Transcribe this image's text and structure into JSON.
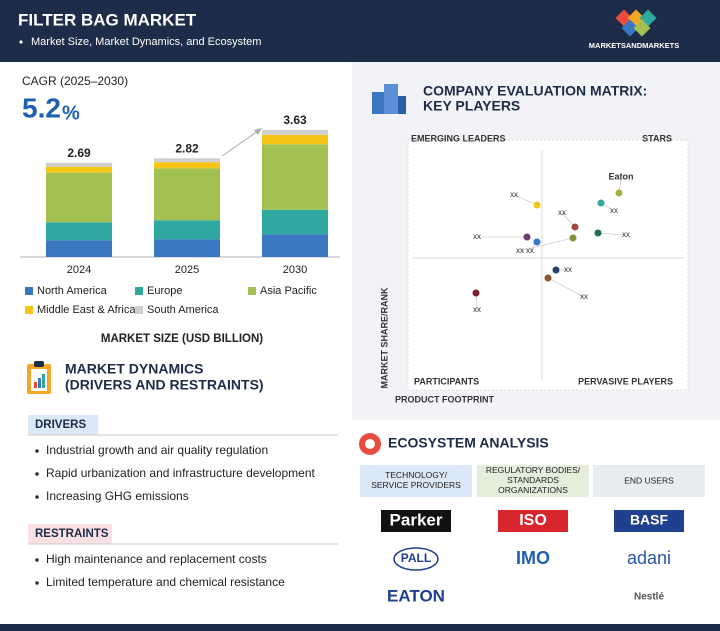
{
  "header": {
    "title": "FILTER BAG MARKET",
    "subtitle": "Market Size, Market Dynamics, and Ecosystem",
    "logo": "MARKETSANDMARKETS"
  },
  "cagr": {
    "label": "CAGR (2025–2030)",
    "value": "5.2",
    "unit": "%"
  },
  "chart_data": {
    "type": "bar",
    "stacked": true,
    "categories": [
      "2024",
      "2025",
      "2030"
    ],
    "series": [
      {
        "name": "North America",
        "color": "#3a78c2",
        "values": [
          0.48,
          0.51,
          0.65
        ]
      },
      {
        "name": "Europe",
        "color": "#2fa9a0",
        "values": [
          0.51,
          0.54,
          0.7
        ]
      },
      {
        "name": "Asia Pacific",
        "color": "#a3c152",
        "values": [
          1.42,
          1.48,
          1.87
        ]
      },
      {
        "name": "Middle East & Africa",
        "color": "#f5c518",
        "values": [
          0.17,
          0.18,
          0.27
        ]
      },
      {
        "name": "South America",
        "color": "#cfcfcf",
        "values": [
          0.11,
          0.11,
          0.14
        ]
      }
    ],
    "totals": [
      2.69,
      2.82,
      3.63
    ],
    "ylim": [
      0,
      4
    ],
    "x_label": "MARKET SIZE (USD BILLION)"
  },
  "dynamics": {
    "title": "MARKET DYNAMICS",
    "subtitle": "(DRIVERS AND RESTRAINTS)",
    "drivers": {
      "heading": "DRIVERS",
      "items": [
        "Industrial growth and air quality regulation",
        "Rapid urbanization and infrastructure development",
        "Increasing GHG emissions"
      ]
    },
    "restraints": {
      "heading": "RESTRAINTS",
      "items": [
        "High maintenance and replacement costs",
        "Limited temperature and chemical resistance"
      ]
    }
  },
  "matrix": {
    "title": "COMPANY EVALUATION MATRIX:",
    "subtitle": "KEY PLAYERS",
    "quadrants": [
      "EMERGING LEADERS",
      "STARS",
      "PARTICIPANTS",
      "PERVASIVE PLAYERS"
    ],
    "y_label": "MARKET SHARE/RANK",
    "x_label": "PRODUCT FOOTPRINT",
    "points": [
      "Eaton",
      "xx",
      "xx",
      "xx",
      "xx",
      "xx",
      "xx",
      "xx",
      "xx",
      "xx",
      "xx"
    ]
  },
  "ecosystem": {
    "title": "ECOSYSTEM ANALYSIS",
    "columns": [
      {
        "heading": "TECHNOLOGY/\nSERVICE PROVIDERS",
        "companies": [
          "Parker",
          "PALL",
          "EATON"
        ]
      },
      {
        "heading": "REGULATORY BODIES/\nSTANDARDS\nORGANIZATIONS",
        "companies": [
          "ISO",
          "IMO"
        ]
      },
      {
        "heading": "END USERS",
        "companies": [
          "BASF",
          "adani",
          "Nestlé"
        ]
      }
    ]
  }
}
